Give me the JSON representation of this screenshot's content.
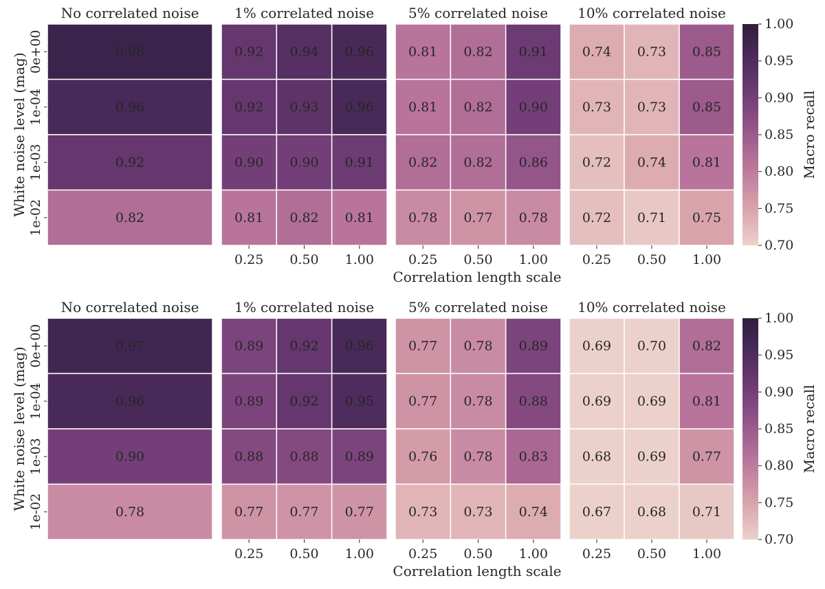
{
  "chart_data": [
    {
      "type": "heatmap",
      "ylabel": "White noise level (mag)",
      "xlabel": "Correlation length scale",
      "row_labels": [
        "0e+00",
        "1e-04",
        "1e-03",
        "1e-02"
      ],
      "colorbar": {
        "label": "Macro recall",
        "range": [
          0.7,
          1.0
        ],
        "ticks": [
          "1.00",
          "0.95",
          "0.90",
          "0.85",
          "0.80",
          "0.75",
          "0.70"
        ]
      },
      "panels": [
        {
          "title": "No correlated noise",
          "columns": [],
          "values": [
            [
              0.98
            ],
            [
              0.96
            ],
            [
              0.92
            ],
            [
              0.82
            ]
          ],
          "labels": [
            [
              "0.98"
            ],
            [
              "0.96"
            ],
            [
              "0.92"
            ],
            [
              "0.82"
            ]
          ]
        },
        {
          "title": "1% correlated noise",
          "columns": [
            "0.25",
            "0.50",
            "1.00"
          ],
          "values": [
            [
              0.92,
              0.94,
              0.96
            ],
            [
              0.92,
              0.93,
              0.96
            ],
            [
              0.9,
              0.9,
              0.91
            ],
            [
              0.81,
              0.82,
              0.81
            ]
          ],
          "labels": [
            [
              "0.92",
              "0.94",
              "0.96"
            ],
            [
              "0.92",
              "0.93",
              "0.96"
            ],
            [
              "0.90",
              "0.90",
              "0.91"
            ],
            [
              "0.81",
              "0.82",
              "0.81"
            ]
          ]
        },
        {
          "title": "5% correlated noise",
          "columns": [
            "0.25",
            "0.50",
            "1.00"
          ],
          "values": [
            [
              0.81,
              0.82,
              0.91
            ],
            [
              0.81,
              0.82,
              0.9
            ],
            [
              0.82,
              0.82,
              0.86
            ],
            [
              0.78,
              0.77,
              0.78
            ]
          ],
          "labels": [
            [
              "0.81",
              "0.82",
              "0.91"
            ],
            [
              "0.81",
              "0.82",
              "0.90"
            ],
            [
              "0.82",
              "0.82",
              "0.86"
            ],
            [
              "0.78",
              "0.77",
              "0.78"
            ]
          ]
        },
        {
          "title": "10% correlated noise",
          "columns": [
            "0.25",
            "0.50",
            "1.00"
          ],
          "values": [
            [
              0.74,
              0.73,
              0.85
            ],
            [
              0.73,
              0.73,
              0.85
            ],
            [
              0.72,
              0.74,
              0.81
            ],
            [
              0.72,
              0.71,
              0.75
            ]
          ],
          "labels": [
            [
              "0.74",
              "0.73",
              "0.85"
            ],
            [
              "0.73",
              "0.73",
              "0.85"
            ],
            [
              "0.72",
              "0.74",
              "0.81"
            ],
            [
              "0.72",
              "0.71",
              "0.75"
            ]
          ]
        }
      ]
    },
    {
      "type": "heatmap",
      "ylabel": "White noise level (mag)",
      "xlabel": "Correlation length scale",
      "row_labels": [
        "0e+00",
        "1e-04",
        "1e-03",
        "1e-02"
      ],
      "colorbar": {
        "label": "Macro recall",
        "range": [
          0.7,
          1.0
        ],
        "ticks": [
          "1.00",
          "0.95",
          "0.90",
          "0.85",
          "0.80",
          "0.75",
          "0.70"
        ]
      },
      "panels": [
        {
          "title": "No correlated noise",
          "columns": [],
          "values": [
            [
              0.97
            ],
            [
              0.96
            ],
            [
              0.9
            ],
            [
              0.78
            ]
          ],
          "labels": [
            [
              "0.97"
            ],
            [
              "0.96"
            ],
            [
              "0.90"
            ],
            [
              "0.78"
            ]
          ]
        },
        {
          "title": "1% correlated noise",
          "columns": [
            "0.25",
            "0.50",
            "1.00"
          ],
          "values": [
            [
              0.89,
              0.92,
              0.96
            ],
            [
              0.89,
              0.92,
              0.95
            ],
            [
              0.88,
              0.88,
              0.89
            ],
            [
              0.77,
              0.77,
              0.77
            ]
          ],
          "labels": [
            [
              "0.89",
              "0.92",
              "0.96"
            ],
            [
              "0.89",
              "0.92",
              "0.95"
            ],
            [
              "0.88",
              "0.88",
              "0.89"
            ],
            [
              "0.77",
              "0.77",
              "0.77"
            ]
          ]
        },
        {
          "title": "5% correlated noise",
          "columns": [
            "0.25",
            "0.50",
            "1.00"
          ],
          "values": [
            [
              0.77,
              0.78,
              0.89
            ],
            [
              0.77,
              0.78,
              0.88
            ],
            [
              0.76,
              0.78,
              0.83
            ],
            [
              0.73,
              0.73,
              0.74
            ]
          ],
          "labels": [
            [
              "0.77",
              "0.78",
              "0.89"
            ],
            [
              "0.77",
              "0.78",
              "0.88"
            ],
            [
              "0.76",
              "0.78",
              "0.83"
            ],
            [
              "0.73",
              "0.73",
              "0.74"
            ]
          ]
        },
        {
          "title": "10% correlated noise",
          "columns": [
            "0.25",
            "0.50",
            "1.00"
          ],
          "values": [
            [
              0.69,
              0.7,
              0.82
            ],
            [
              0.69,
              0.69,
              0.81
            ],
            [
              0.68,
              0.69,
              0.77
            ],
            [
              0.67,
              0.68,
              0.71
            ]
          ],
          "labels": [
            [
              "0.69",
              "0.70",
              "0.82"
            ],
            [
              "0.69",
              "0.69",
              "0.81"
            ],
            [
              "0.68",
              "0.69",
              "0.77"
            ],
            [
              "0.67",
              "0.68",
              "0.71"
            ]
          ]
        }
      ]
    }
  ],
  "colormap": [
    "#ecd1cb",
    "#d9a3ab",
    "#bf7b9e",
    "#9c5a8d",
    "#743f78",
    "#4f2c5e",
    "#2d1e3e"
  ]
}
